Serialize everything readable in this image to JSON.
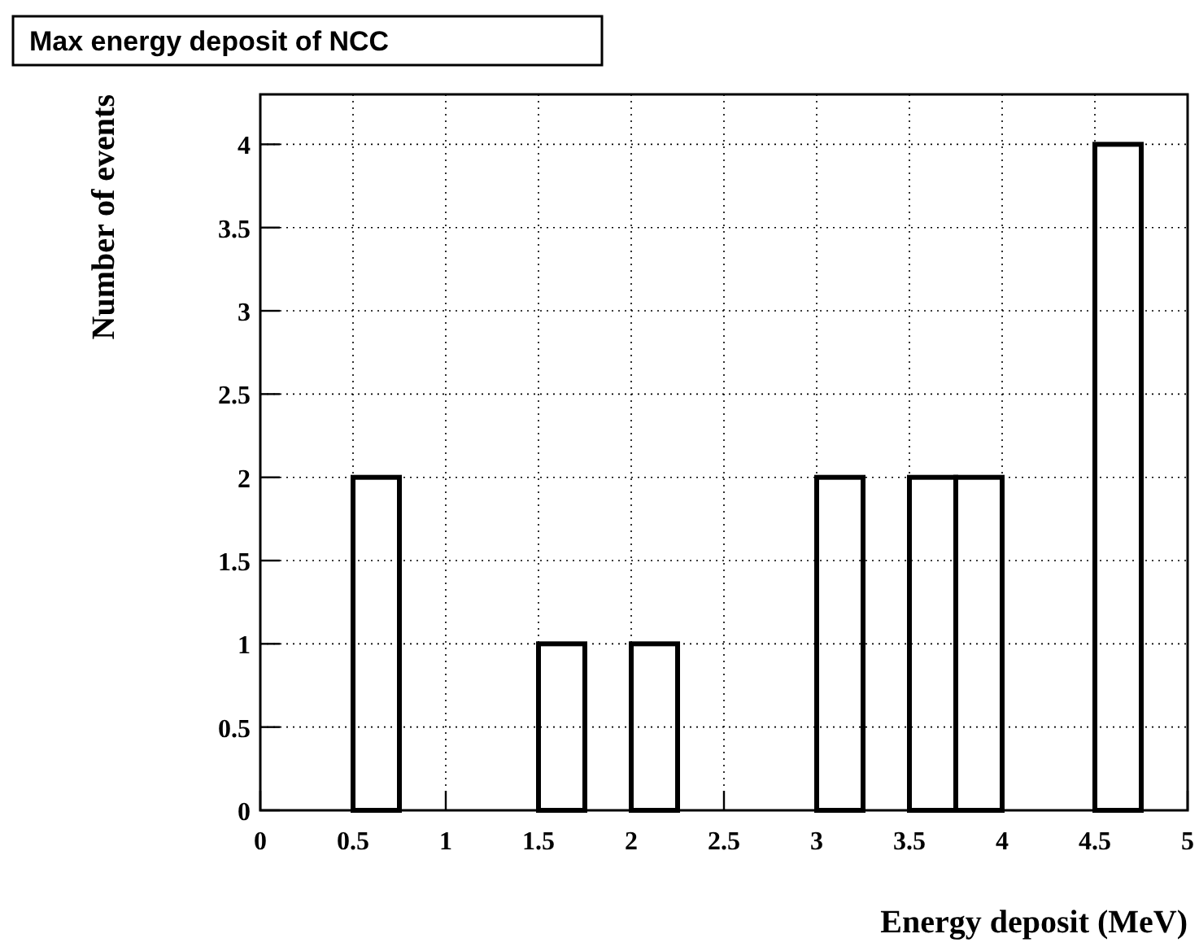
{
  "chart_data": {
    "type": "histogram",
    "title": "Max energy deposit of NCC",
    "xlabel": "Energy deposit (MeV)",
    "ylabel": "Number of events",
    "bins": [
      0,
      0.25,
      0.5,
      0.75,
      1,
      1.25,
      1.5,
      1.75,
      2,
      2.25,
      2.5,
      2.75,
      3,
      3.25,
      3.5,
      3.75,
      4,
      4.25,
      4.5,
      4.75,
      5
    ],
    "values": [
      0,
      0,
      2,
      0,
      0,
      0,
      1,
      0,
      1,
      0,
      0,
      0,
      2,
      0,
      2,
      2,
      0,
      0,
      4,
      0
    ],
    "color": "#000000",
    "xlim": [
      0,
      5
    ],
    "xticks": [
      0,
      0.5,
      1,
      1.5,
      2,
      2.5,
      3,
      3.5,
      4,
      4.5,
      5
    ],
    "ylim": [
      0,
      4.3
    ],
    "yticks": [
      0,
      0.5,
      1,
      1.5,
      2,
      2.5,
      3,
      3.5,
      4
    ],
    "grid": true
  }
}
